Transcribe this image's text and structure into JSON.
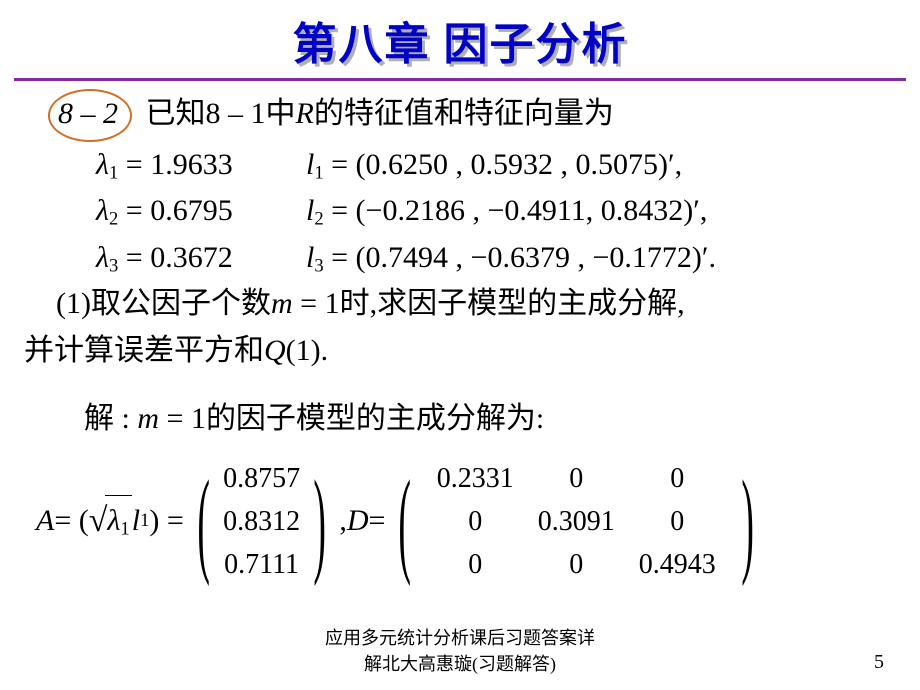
{
  "title": {
    "text": "第八章  因子分析",
    "color": "#0202c4",
    "shadow_color": "#b0b0b0",
    "fontsize": 44
  },
  "rule": {
    "color": "#7d2aa3"
  },
  "body": {
    "fontsize": 30,
    "color": "#000000"
  },
  "problem": {
    "badge_color": "#d07028",
    "badge_text": "8 – 2",
    "intro_a": "已知",
    "intro_ref": "8 – 1",
    "intro_b": "中",
    "intro_R": "R",
    "intro_c": "的特征值和特征向量为"
  },
  "eig": {
    "l1_sym": "λ",
    "l1_sub": "1",
    "l1_eq": " = 1.9633",
    "v1_sym": "l",
    "v1_sub": "1",
    "v1_val": " = (0.6250 , 0.5932 , 0.5075)′,",
    "l2_sym": "λ",
    "l2_sub": "2",
    "l2_eq": " = 0.6795",
    "v2_sym": "l",
    "v2_sub": "2",
    "v2_val": " = (−0.2186 , −0.4911, 0.8432)′,",
    "l3_sym": "λ",
    "l3_sub": "3",
    "l3_eq": " = 0.3672",
    "v3_sym": "l",
    "v3_sub": "3",
    "v3_val": " = (0.7494 , −0.6379 , −0.1772)′."
  },
  "question": {
    "part1a": "(1)取公因子个数",
    "part1_m": "m",
    "part1_eq": " = 1",
    "part1b": "时,求因子模型的主成分解,",
    "part2a": "并计算误差平方和",
    "part2_Q": "Q",
    "part2b": "(1)."
  },
  "solution": {
    "lead_a": "解 : ",
    "lead_m": "m",
    "lead_eq": " = 1",
    "lead_b": "的因子模型的主成分解为:"
  },
  "matrices": {
    "A_sym": "A",
    "eq1": " = (",
    "sqrt_inner_l": "λ",
    "sqrt_inner_sub": "1",
    "l_sym": "l",
    "l_sub": "1",
    "close1": ") = ",
    "A_col": [
      "0.8757",
      "0.8312",
      "0.7111"
    ],
    "mid": ", ",
    "D_sym": "D",
    "eq2": " = ",
    "D": {
      "c1": [
        "0.2331",
        "0",
        "0"
      ],
      "c2": [
        "0",
        "0.3091",
        "0"
      ],
      "c3": [
        "0",
        "0",
        "0.4943"
      ]
    },
    "paren_fontsize": 118,
    "cell_fontsize": 28
  },
  "footer": {
    "line1": "应用多元统计分析课后习题答案详",
    "line2": "解北大高惠璇(习题解答)",
    "fontsize": 18
  },
  "page_num": {
    "text": "5",
    "fontsize": 20
  }
}
